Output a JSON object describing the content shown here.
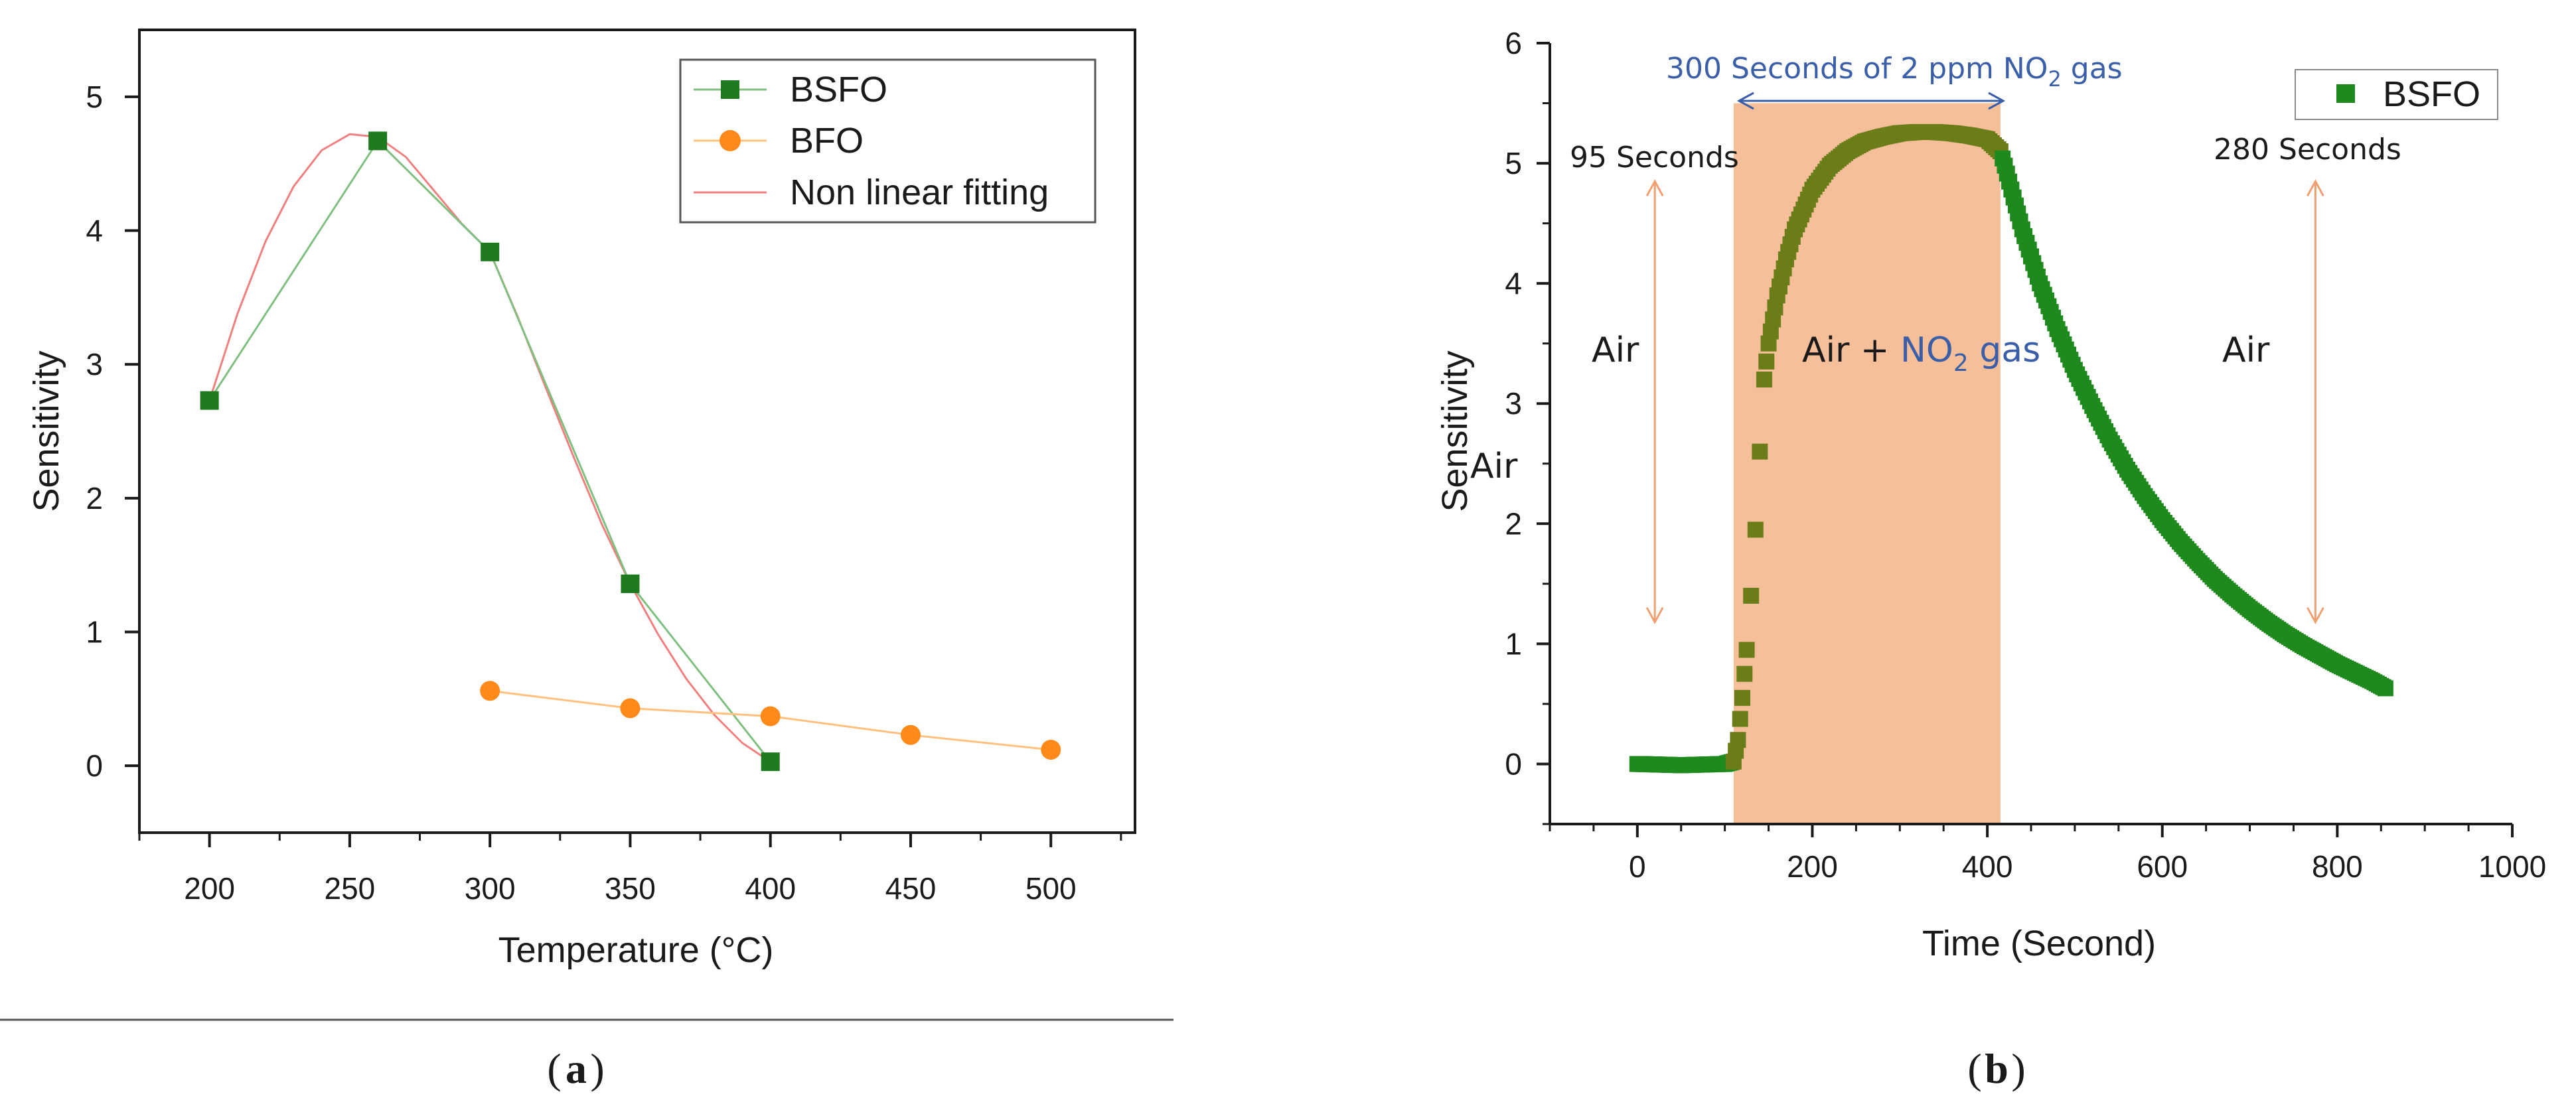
{
  "chart_data": [
    {
      "type": "scatter",
      "panel_label": "a",
      "title": "",
      "xlabel": "Temperature (°C)",
      "ylabel": "Sensitivity",
      "xlim": [
        175,
        530
      ],
      "ylim": [
        -0.5,
        5.5
      ],
      "xticks": [
        200,
        250,
        300,
        350,
        400,
        450,
        500
      ],
      "yticks": [
        0,
        1,
        2,
        3,
        4,
        5
      ],
      "legend_position": "top-right",
      "series": [
        {
          "name": "BSFO",
          "marker": "square",
          "color": "#1f7a1f",
          "line_color": "#7fbf7f",
          "x": [
            200,
            260,
            300,
            350,
            400
          ],
          "y": [
            2.73,
            4.67,
            3.84,
            1.36,
            0.03
          ]
        },
        {
          "name": "BFO",
          "marker": "circle",
          "color": "#ff8a1a",
          "line_color": "#ffc080",
          "x": [
            300,
            350,
            400,
            450,
            500
          ],
          "y": [
            0.56,
            0.43,
            0.37,
            0.23,
            0.12
          ]
        },
        {
          "name": "Non linear fitting",
          "marker": "none",
          "color": "#f08080",
          "x": [
            200,
            210,
            220,
            230,
            240,
            250,
            260,
            270,
            280,
            290,
            300,
            310,
            320,
            330,
            340,
            350,
            360,
            370,
            380,
            390,
            400
          ],
          "y": [
            2.73,
            3.38,
            3.92,
            4.33,
            4.6,
            4.72,
            4.7,
            4.55,
            4.3,
            4.05,
            3.84,
            3.35,
            2.82,
            2.3,
            1.8,
            1.36,
            0.98,
            0.65,
            0.38,
            0.17,
            0.03
          ]
        }
      ]
    },
    {
      "type": "scatter",
      "panel_label": "b",
      "title": "",
      "xlabel": "Time (Second)",
      "ylabel": "Sensitivity",
      "xlim": [
        -100,
        1000
      ],
      "ylim": [
        -0.5,
        6
      ],
      "xticks": [
        0,
        200,
        400,
        600,
        800,
        1000
      ],
      "yticks": [
        0,
        1,
        2,
        3,
        4,
        5,
        6
      ],
      "legend_position": "top-right",
      "shaded_region": {
        "x_start": 110,
        "x_end": 415,
        "color": "#f5bf99"
      },
      "series": [
        {
          "name": "BSFO",
          "marker": "square",
          "color": "#1e8a1e",
          "color_in_region": "#6b7d18",
          "x": [
            0,
            50,
            100,
            110,
            115,
            120,
            125,
            128,
            130,
            133,
            135,
            138,
            140,
            145,
            150,
            160,
            170,
            180,
            200,
            220,
            240,
            260,
            280,
            300,
            320,
            340,
            360,
            380,
            400,
            415,
            420,
            440,
            460,
            480,
            500,
            520,
            540,
            560,
            580,
            600,
            620,
            640,
            660,
            680,
            700,
            720,
            740,
            760,
            780,
            800,
            820,
            840,
            855
          ],
          "y": [
            0.0,
            -0.01,
            0.0,
            0.02,
            0.2,
            0.55,
            0.95,
            1.15,
            1.4,
            1.65,
            1.95,
            2.45,
            2.6,
            3.2,
            3.5,
            3.9,
            4.2,
            4.45,
            4.78,
            4.98,
            5.1,
            5.18,
            5.22,
            5.25,
            5.26,
            5.26,
            5.25,
            5.23,
            5.2,
            5.1,
            4.98,
            4.45,
            4.0,
            3.62,
            3.28,
            2.98,
            2.7,
            2.45,
            2.23,
            2.03,
            1.85,
            1.69,
            1.54,
            1.41,
            1.29,
            1.18,
            1.08,
            0.99,
            0.91,
            0.83,
            0.76,
            0.69,
            0.63
          ]
        }
      ]
    }
  ],
  "panel_a": {
    "legend": [
      "BSFO",
      "BFO",
      "Non linear fitting"
    ],
    "caption_letter": "a"
  },
  "panel_b": {
    "legend": [
      "BSFO"
    ],
    "annotations": {
      "top": "300 Seconds of 2 ppm NO",
      "top_sub": "2",
      "top_tail": " gas",
      "left_time": "95 Seconds",
      "right_time": "280 Seconds",
      "air_left": "Air",
      "air_mid": "Air + ",
      "air_mid_gas": "NO",
      "air_mid_sub": "2",
      "air_mid_tail": " gas",
      "air_right": "Air",
      "air_ylabel": "Air"
    },
    "caption_letter": "b"
  },
  "colors": {
    "bsfo": "#1f7a1f",
    "bfo": "#ff8a1a",
    "fit": "#f08080",
    "shade": "#f5bf99",
    "arrow": "#f0a070",
    "annot_blue": "#3a5fa8"
  }
}
